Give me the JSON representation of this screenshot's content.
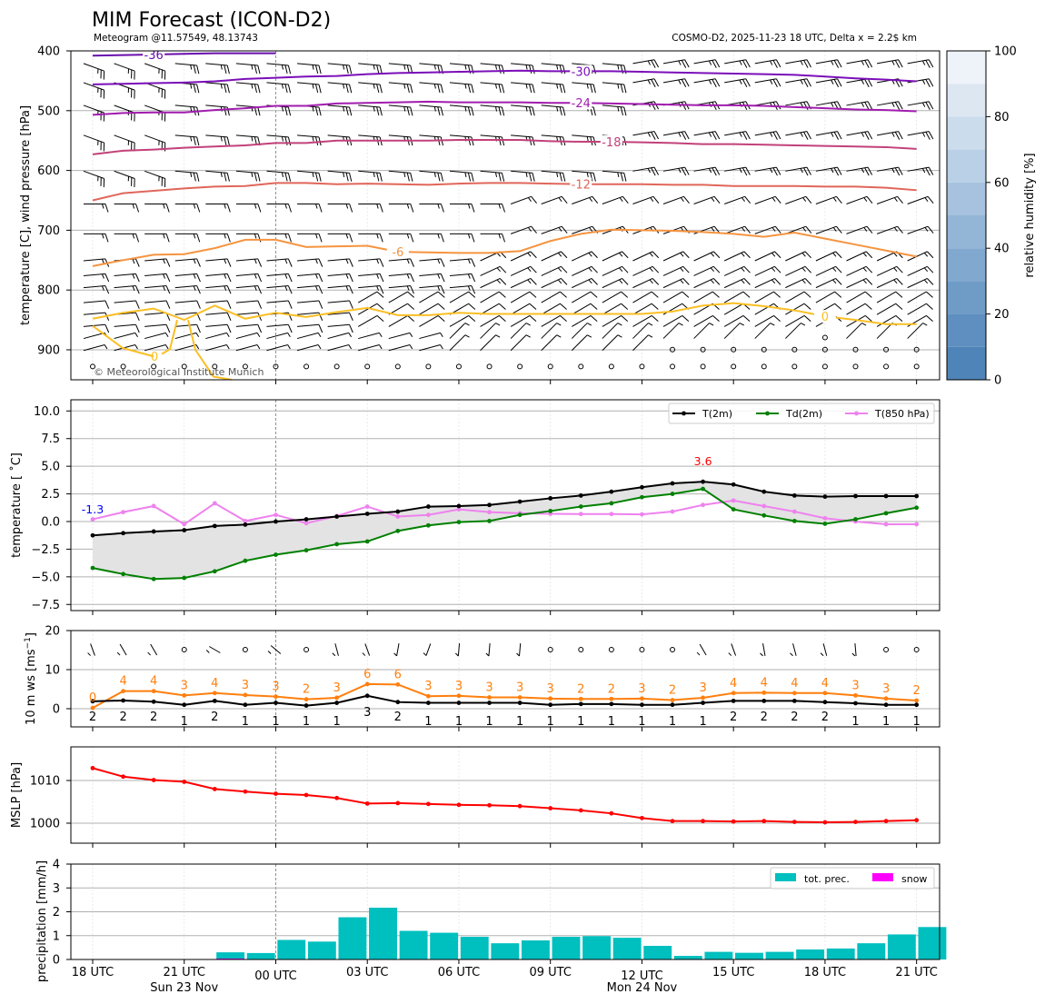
{
  "header": {
    "title": "MIM Forecast (ICON-D2)",
    "subtitle_left": "Meteogram @11.57549, 48.13743",
    "subtitle_right": "COSMO-D2, 2025-11-23 18 UTC, Delta x = 2.2$ km"
  },
  "time_axis": {
    "hours_from_start": [
      0,
      1,
      2,
      3,
      4,
      5,
      6,
      7,
      8,
      9,
      10,
      11,
      12,
      13,
      14,
      15,
      16,
      17,
      18,
      19,
      20,
      21,
      22,
      23,
      24,
      25,
      26,
      27
    ],
    "tick_labels": [
      "18 UTC",
      "21 UTC",
      "00 UTC",
      "03 UTC",
      "06 UTC",
      "09 UTC",
      "12 UTC",
      "15 UTC",
      "18 UTC",
      "21 UTC"
    ],
    "tick_hours": [
      0,
      3,
      6,
      9,
      12,
      15,
      18,
      21,
      24,
      27
    ],
    "day_labels": [
      {
        "text": "Sun 23 Nov",
        "hour": 3
      },
      {
        "text": "Mon 24 Nov",
        "hour": 18
      }
    ],
    "midnight_hour": 6
  },
  "colors": {
    "t2m": "#000000",
    "td2m": "#008000",
    "t850": "#ee82ee",
    "wind_gust": "#ff7f0e",
    "mslp": "#ff0000",
    "precip": "#00bfbf",
    "snow": "#ff00ff",
    "tmin_label": "#0000ff",
    "tmax_label": "#ff0000",
    "grid": "#b0b0b0"
  },
  "chart_data": [
    {
      "type": "line",
      "name": "upper-air",
      "ylabel": "temperature [C], wind pressure [hPa]",
      "yticks": [
        400,
        500,
        600,
        700,
        800,
        900
      ],
      "ylim": [
        950,
        400
      ],
      "credit": "© Meteorological Institute Munich",
      "isotherms": [
        {
          "label": "-36",
          "color": "#6a0dad",
          "label_hour": 2,
          "pressures": [
            408,
            407,
            406,
            405,
            404,
            404,
            404
          ]
        },
        {
          "label": "-30",
          "color": "#7b0fb8",
          "label_hour": 16,
          "pressures": [
            456,
            455,
            454,
            453,
            451,
            447,
            445,
            443,
            442,
            439,
            437,
            436,
            435,
            434,
            433,
            434,
            434,
            434,
            435,
            436,
            437,
            438,
            439,
            440,
            443,
            446,
            448,
            451
          ]
        },
        {
          "label": "-24",
          "color": "#a21caf",
          "label_hour": 16,
          "pressures": [
            507,
            504,
            503,
            503,
            499,
            496,
            492,
            492,
            488,
            487,
            486,
            485,
            486,
            486,
            486,
            487,
            487,
            488,
            489,
            490,
            491,
            491,
            492,
            494,
            496,
            498,
            499,
            501
          ]
        },
        {
          "label": "-18",
          "color": "#c2417a",
          "label_hour": 17,
          "pressures": [
            573,
            567,
            565,
            562,
            560,
            558,
            554,
            554,
            550,
            550,
            550,
            550,
            549,
            549,
            549,
            551,
            552,
            552,
            553,
            554,
            556,
            556,
            557,
            558,
            559,
            560,
            561,
            564
          ]
        },
        {
          "label": "-12",
          "color": "#e0665a",
          "label_hour": 16,
          "pressures": [
            650,
            638,
            634,
            630,
            627,
            626,
            621,
            621,
            623,
            622,
            623,
            624,
            622,
            621,
            621,
            622,
            623,
            623,
            623,
            624,
            624,
            626,
            626,
            626,
            627,
            627,
            629,
            633
          ]
        },
        {
          "label": "-6",
          "color": "#f59440",
          "label_hour": 10,
          "pressures": [
            760,
            750,
            741,
            740,
            730,
            716,
            716,
            728,
            727,
            726,
            736,
            737,
            738,
            738,
            735,
            718,
            706,
            699,
            700,
            701,
            703,
            706,
            711,
            704,
            714,
            724,
            734,
            744
          ]
        },
        {
          "label": "0",
          "color": "#fbbf24",
          "label_hour": 24,
          "pressures": [
            848,
            838,
            831,
            850,
            826,
            848,
            838,
            845,
            837,
            830,
            842,
            842,
            838,
            840,
            840,
            840,
            840,
            840,
            840,
            836,
            826,
            822,
            827,
            834,
            844,
            850,
            857,
            857
          ]
        }
      ],
      "rh_colorbar": {
        "label": "relative humidity [%]",
        "ticks": [
          0,
          20,
          40,
          60,
          80,
          100
        ],
        "levels": [
          0,
          10,
          20,
          30,
          40,
          50,
          60,
          70,
          80,
          90,
          100
        ]
      },
      "wind_levels_hpa": [
        415,
        447,
        485,
        535,
        595,
        650,
        700,
        745,
        770,
        790,
        815,
        835,
        855,
        875,
        895,
        920
      ],
      "calm_markers_surface": true
    },
    {
      "type": "line",
      "name": "surface-temperature",
      "ylabel": "temperature [$^\\circ$C]",
      "ylabel_display": "temperature [ ˚C]",
      "ylim": [
        -8.3,
        11.1
      ],
      "yticks": [
        -7.5,
        -5.0,
        -2.5,
        0.0,
        2.5,
        5.0,
        7.5,
        10.0
      ],
      "ytick_labels": [
        "−7.5",
        "−5.0",
        "−2.5",
        "0.0",
        "2.5",
        "5.0",
        "7.5",
        "10.0"
      ],
      "legend": [
        "T(2m)",
        "Td(2m)",
        "T(850 hPa)"
      ],
      "legend_position": "top-right",
      "min_label": {
        "text": "-1.3",
        "hour": 0,
        "value": -1.3
      },
      "max_label": {
        "text": "3.6",
        "hour": 20,
        "value": 3.6
      },
      "series": [
        {
          "name": "T(2m)",
          "values": [
            -1.25,
            -1.05,
            -0.9,
            -0.78,
            -0.4,
            -0.28,
            0.0,
            0.2,
            0.45,
            0.7,
            0.9,
            1.35,
            1.4,
            1.5,
            1.8,
            2.1,
            2.35,
            2.7,
            3.1,
            3.45,
            3.6,
            3.35,
            2.7,
            2.35,
            2.25,
            2.3,
            2.3,
            2.3
          ]
        },
        {
          "name": "Td(2m)",
          "values": [
            -4.2,
            -4.75,
            -5.2,
            -5.1,
            -4.5,
            -3.55,
            -3.0,
            -2.6,
            -2.05,
            -1.8,
            -0.85,
            -0.35,
            -0.05,
            0.05,
            0.6,
            0.95,
            1.35,
            1.65,
            2.2,
            2.5,
            2.95,
            1.1,
            0.55,
            0.05,
            -0.2,
            0.2,
            0.75,
            1.25
          ]
        },
        {
          "name": "T(850 hPa)",
          "values": [
            0.2,
            0.85,
            1.4,
            -0.25,
            1.65,
            0.05,
            0.6,
            -0.15,
            0.5,
            1.35,
            0.45,
            0.6,
            1.1,
            0.85,
            0.75,
            0.7,
            0.68,
            0.68,
            0.65,
            0.9,
            1.5,
            1.9,
            1.4,
            0.9,
            0.3,
            0.0,
            -0.25,
            -0.25
          ]
        }
      ]
    },
    {
      "type": "line",
      "name": "wind",
      "ylabel": "10 m ws [ms⁻¹]",
      "ylabel_main": "10 m ws [ms",
      "ylabel_sup": "−1",
      "ylabel_end": "]",
      "ylim": [
        -5,
        20
      ],
      "yticks": [
        0,
        10,
        20
      ],
      "series": [
        {
          "name": "gust",
          "values": [
            0.2,
            4.5,
            4.5,
            3.4,
            4.0,
            3.5,
            3.1,
            2.4,
            2.8,
            6.3,
            6.2,
            3.2,
            3.3,
            2.9,
            2.9,
            2.6,
            2.5,
            2.5,
            2.6,
            2.2,
            2.8,
            4.0,
            4.1,
            4.0,
            4.0,
            3.4,
            2.6,
            2.1
          ],
          "labels": [
            "0",
            "4",
            "4",
            "3",
            "4",
            "3",
            "3",
            "2",
            "3",
            "6",
            "6",
            "3",
            "3",
            "3",
            "3",
            "3",
            "2",
            "2",
            "3",
            "2",
            "3",
            "4",
            "4",
            "4",
            "4",
            "3",
            "3",
            "2"
          ]
        },
        {
          "name": "mean",
          "values": [
            1.9,
            2.1,
            1.8,
            1.0,
            2.0,
            1.0,
            1.5,
            0.8,
            1.5,
            3.3,
            1.7,
            1.5,
            1.5,
            1.5,
            1.5,
            1.0,
            1.2,
            1.2,
            1.0,
            1.0,
            1.5,
            2.0,
            2.0,
            2.0,
            1.7,
            1.4,
            1.0,
            1.0
          ],
          "labels": [
            "2",
            "2",
            "2",
            "1",
            "2",
            "1",
            "1",
            "1",
            "1",
            "3",
            "2",
            "1",
            "1",
            "1",
            "1",
            "1",
            "1",
            "1",
            "1",
            "1",
            "1",
            "2",
            "2",
            "2",
            "2",
            "1",
            "1",
            "1"
          ]
        }
      ],
      "barbs_direction_deg": [
        340,
        330,
        330,
        null,
        300,
        null,
        310,
        null,
        345,
        340,
        190,
        200,
        185,
        185,
        185,
        null,
        null,
        null,
        null,
        null,
        330,
        340,
        350,
        345,
        345,
        355,
        null,
        null
      ]
    },
    {
      "type": "line",
      "name": "mslp",
      "ylabel": "MSLP [hPa]",
      "ylim": [
        995.4,
        1017.8
      ],
      "yticks": [
        1000,
        1010
      ],
      "series": [
        {
          "name": "MSLP",
          "values": [
            1012.9,
            1010.9,
            1010.1,
            1009.7,
            1008.0,
            1007.4,
            1006.9,
            1006.6,
            1005.9,
            1004.6,
            1004.7,
            1004.5,
            1004.3,
            1004.2,
            1004.0,
            1003.5,
            1003.0,
            1002.3,
            1001.2,
            1000.5,
            1000.5,
            1000.4,
            1000.5,
            1000.3,
            1000.2,
            1000.3,
            1000.5,
            1000.7
          ]
        }
      ]
    },
    {
      "type": "bar",
      "name": "precipitation",
      "ylabel": "precipitation [mm/h]",
      "ylim": [
        0,
        4
      ],
      "yticks": [
        0,
        1,
        2,
        3,
        4
      ],
      "legend": [
        "tot. prec.",
        "snow"
      ],
      "legend_position": "top-right",
      "series": [
        {
          "name": "tot. prec.",
          "values": [
            0,
            0,
            0,
            0,
            0.3,
            0.27,
            0.82,
            0.75,
            1.77,
            2.17,
            1.2,
            1.12,
            0.95,
            0.68,
            0.8,
            0.95,
            0.98,
            0.91,
            0.57,
            0.15,
            0.32,
            0.28,
            0.32,
            0.42,
            0.46,
            0.68,
            1.05,
            1.36
          ]
        },
        {
          "name": "snow",
          "values": [
            0,
            0,
            0,
            0,
            0.04,
            0,
            0,
            0,
            0,
            0,
            0,
            0,
            0,
            0,
            0,
            0,
            0,
            0,
            0,
            0,
            0,
            0,
            0,
            0,
            0,
            0,
            0,
            0
          ]
        }
      ]
    }
  ]
}
